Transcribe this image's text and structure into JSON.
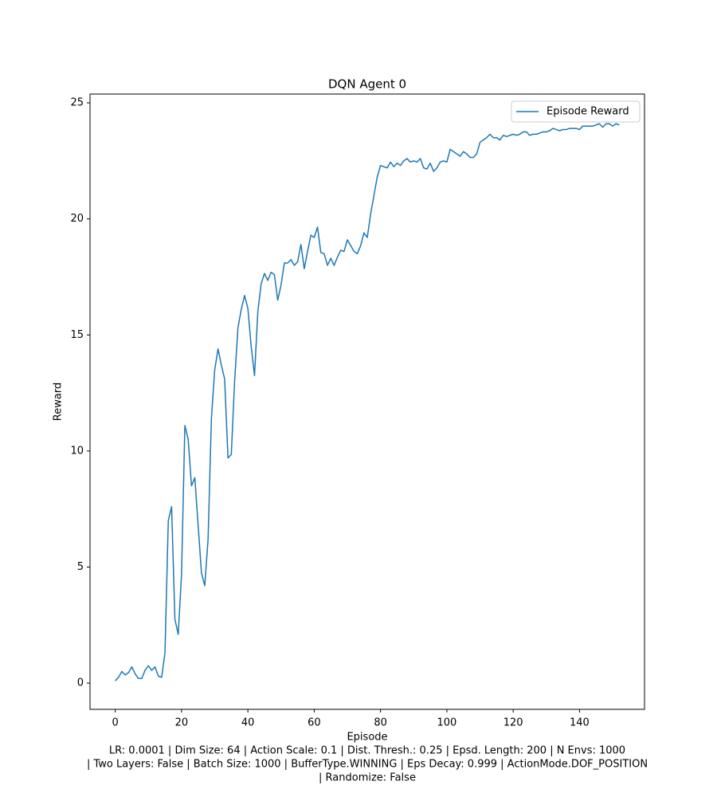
{
  "chart_data": {
    "type": "line",
    "title": "DQN Agent 0",
    "x_label": "Episode",
    "y_label": "Reward",
    "footer": [
      "LR: 0.0001 | Dim Size: 64 | Action Scale: 0.1 | Dist. Thresh.: 0.25 | Epsd. Length: 200 | N Envs: 1000",
      "| Two Layers: False | Batch Size: 1000 | BufferType.WINNING | Eps Decay: 0.999 | ActionMode.DOF_POSITION",
      "| Randomize: False"
    ],
    "legend": "upper right",
    "xlim": [
      -7.6,
      159.6
    ],
    "xticks": [
      0,
      20,
      40,
      60,
      80,
      100,
      120,
      140
    ],
    "ylim": [
      -1.13,
      25.38
    ],
    "yticks": [
      0,
      5,
      10,
      15,
      20,
      25
    ],
    "x": [
      0,
      1,
      2,
      3,
      4,
      5,
      6,
      7,
      8,
      9,
      10,
      11,
      12,
      13,
      14,
      15,
      16,
      17,
      18,
      19,
      20,
      21,
      22,
      23,
      24,
      25,
      26,
      27,
      28,
      29,
      30,
      31,
      32,
      33,
      34,
      35,
      36,
      37,
      38,
      39,
      40,
      41,
      42,
      43,
      44,
      45,
      46,
      47,
      48,
      49,
      50,
      51,
      52,
      53,
      54,
      55,
      56,
      57,
      58,
      59,
      60,
      61,
      62,
      63,
      64,
      65,
      66,
      67,
      68,
      69,
      70,
      71,
      72,
      73,
      74,
      75,
      76,
      77,
      78,
      79,
      80,
      81,
      82,
      83,
      84,
      85,
      86,
      87,
      88,
      89,
      90,
      91,
      92,
      93,
      94,
      95,
      96,
      97,
      98,
      99,
      100,
      101,
      102,
      103,
      104,
      105,
      106,
      107,
      108,
      109,
      110,
      111,
      112,
      113,
      114,
      115,
      116,
      117,
      118,
      119,
      120,
      121,
      122,
      123,
      124,
      125,
      126,
      127,
      128,
      129,
      130,
      131,
      132,
      133,
      134,
      135,
      136,
      137,
      138,
      139,
      140,
      141,
      142,
      143,
      144,
      145,
      146,
      147,
      148,
      149,
      150,
      151,
      152
    ],
    "series": [
      {
        "name": "Episode Reward",
        "color": "#1f77b4",
        "values": [
          0.1,
          0.25,
          0.5,
          0.35,
          0.45,
          0.7,
          0.4,
          0.2,
          0.2,
          0.55,
          0.75,
          0.55,
          0.7,
          0.3,
          0.25,
          1.3,
          7.0,
          7.6,
          2.75,
          2.1,
          4.7,
          11.1,
          10.5,
          8.5,
          8.85,
          6.8,
          4.75,
          4.2,
          6.2,
          11.4,
          13.5,
          14.4,
          13.7,
          13.1,
          9.7,
          9.85,
          13.0,
          15.3,
          16.1,
          16.7,
          16.15,
          14.5,
          13.25,
          16.0,
          17.2,
          17.65,
          17.35,
          17.7,
          17.6,
          16.5,
          17.15,
          18.1,
          18.1,
          18.25,
          18.0,
          18.15,
          18.9,
          17.85,
          18.6,
          19.3,
          19.2,
          19.65,
          18.55,
          18.5,
          18.0,
          18.3,
          18.0,
          18.35,
          18.65,
          18.6,
          19.1,
          18.85,
          18.6,
          18.5,
          18.85,
          19.4,
          19.2,
          20.2,
          21.0,
          21.8,
          22.3,
          22.25,
          22.2,
          22.45,
          22.25,
          22.4,
          22.3,
          22.5,
          22.6,
          22.45,
          22.5,
          22.45,
          22.6,
          22.2,
          22.15,
          22.4,
          22.05,
          22.2,
          22.45,
          22.5,
          22.45,
          23.0,
          22.9,
          22.8,
          22.7,
          22.9,
          22.8,
          22.65,
          22.65,
          22.8,
          23.3,
          23.4,
          23.5,
          23.65,
          23.5,
          23.5,
          23.4,
          23.6,
          23.55,
          23.6,
          23.65,
          23.6,
          23.65,
          23.75,
          23.75,
          23.6,
          23.65,
          23.65,
          23.7,
          23.75,
          23.75,
          23.8,
          23.9,
          23.85,
          23.8,
          23.85,
          23.85,
          23.9,
          23.9,
          23.9,
          23.85,
          24.0,
          24.0,
          24.0,
          24.0,
          24.05,
          24.1,
          23.95,
          24.1,
          24.1,
          24.0,
          24.1,
          24.05
        ]
      }
    ]
  }
}
